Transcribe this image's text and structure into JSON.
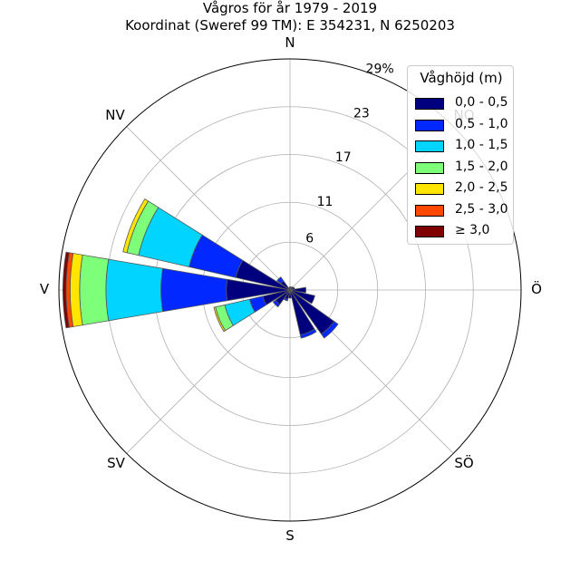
{
  "chart_data": {
    "type": "windrose",
    "title": "Vågros för år 1979 - 2019",
    "subtitle": "Koordinat (Sweref 99 TM): E 354231, N 6250203",
    "directions": [
      "N",
      "NO",
      "Ö",
      "SÖ",
      "S",
      "SV",
      "V",
      "NV"
    ],
    "radial_ticks": [
      "6",
      "11",
      "17",
      "23",
      "29%"
    ],
    "radial_tick_values": [
      6,
      11,
      17,
      23,
      29
    ],
    "rmax": 29,
    "legend_title": "Våghöjd (m)",
    "legend_position": "top-right",
    "bins": [
      {
        "label": "0,0 - 0,5",
        "color": "#00007f"
      },
      {
        "label": "0,5 - 1,0",
        "color": "#0028ff"
      },
      {
        "label": "1,0 - 1,5",
        "color": "#00d4ff"
      },
      {
        "label": "1,5 - 2,0",
        "color": "#7dff7a"
      },
      {
        "label": "2,0 - 2,5",
        "color": "#ffe500"
      },
      {
        "label": "2,5 - 3,0",
        "color": "#ff4800"
      },
      {
        "label": "≥ 3,0",
        "color": "#7f0000"
      }
    ],
    "sectors": [
      {
        "direction_deg": 0,
        "cumulative": [
          0.4
        ]
      },
      {
        "direction_deg": 22.5,
        "cumulative": [
          0.4
        ]
      },
      {
        "direction_deg": 45,
        "cumulative": [
          0.5
        ]
      },
      {
        "direction_deg": 67.5,
        "cumulative": [
          0.6
        ]
      },
      {
        "direction_deg": 90,
        "cumulative": [
          2.0
        ]
      },
      {
        "direction_deg": 112.5,
        "cumulative": [
          3.2
        ]
      },
      {
        "direction_deg": 135,
        "cumulative": [
          6.8,
          7.4
        ]
      },
      {
        "direction_deg": 157.5,
        "cumulative": [
          5.8,
          6.2
        ]
      },
      {
        "direction_deg": 180,
        "cumulative": [
          1.0
        ]
      },
      {
        "direction_deg": 202.5,
        "cumulative": [
          1.2,
          1.4
        ]
      },
      {
        "direction_deg": 225,
        "cumulative": [
          2.2,
          2.6
        ]
      },
      {
        "direction_deg": 247.5,
        "cumulative": [
          3.5,
          5.2,
          8.4,
          9.6,
          9.8
        ]
      },
      {
        "direction_deg": 270,
        "cumulative": [
          8.0,
          16.2,
          23.1,
          26.4,
          27.6,
          28.1,
          28.5
        ]
      },
      {
        "direction_deg": 292.5,
        "cumulative": [
          7.0,
          13.0,
          19.5,
          21.0,
          21.5
        ]
      },
      {
        "direction_deg": 315,
        "cumulative": [
          1.4,
          2.0
        ]
      },
      {
        "direction_deg": 337.5,
        "cumulative": [
          0.3
        ]
      }
    ]
  }
}
